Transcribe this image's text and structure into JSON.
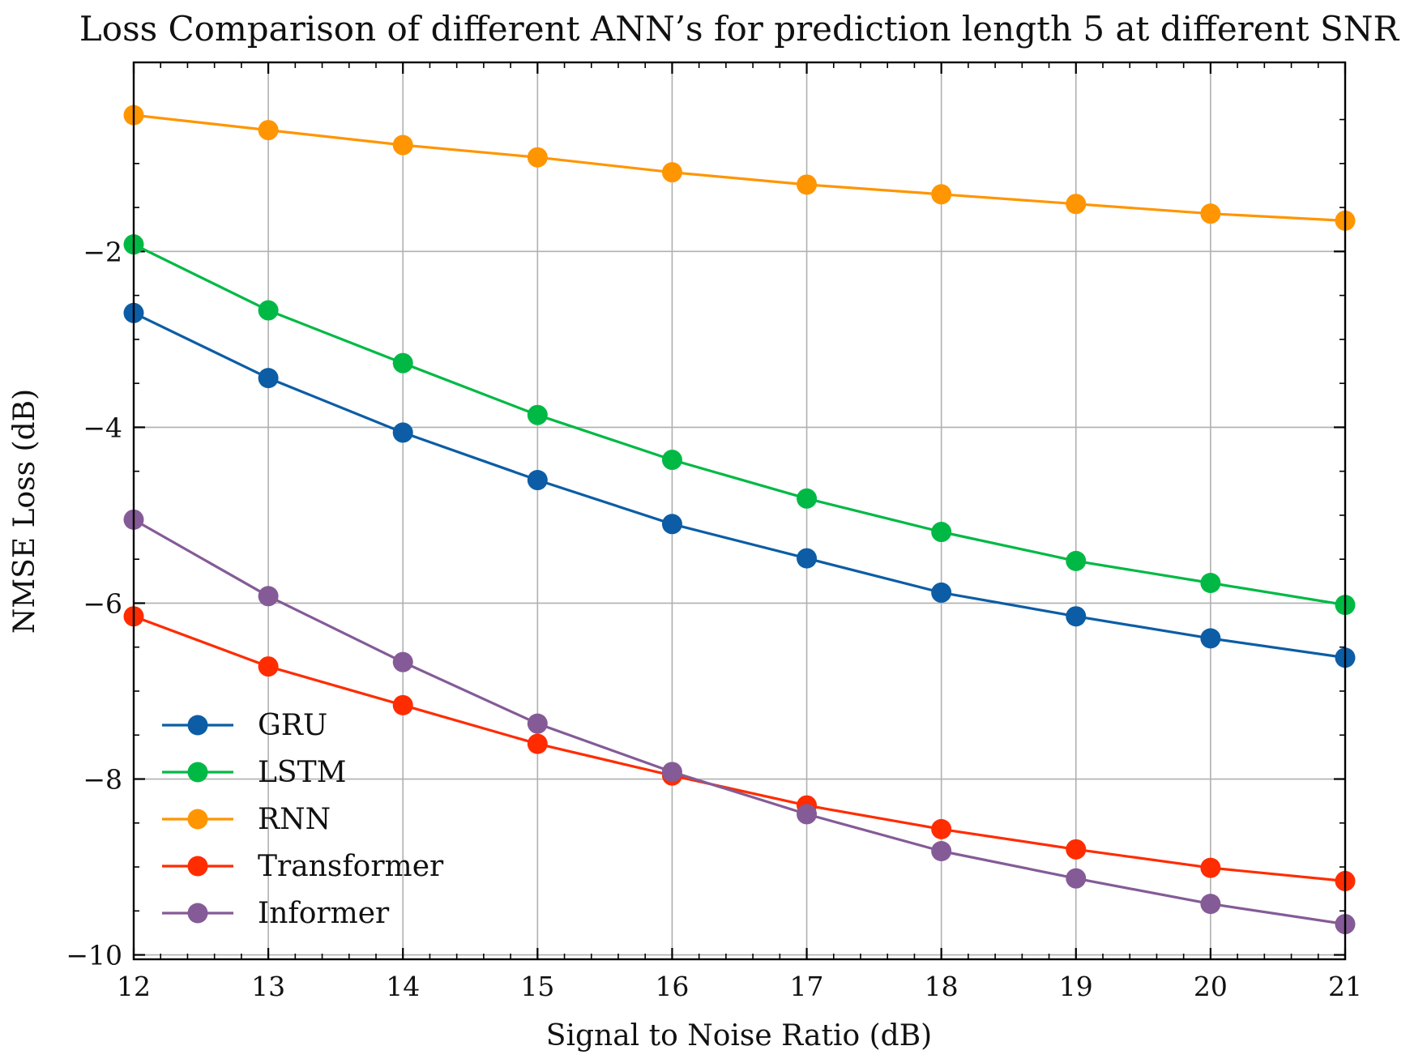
{
  "chart_data": {
    "type": "line",
    "title": "Loss Comparison of different ANN’s for prediction length 5 at different SNR",
    "xlabel": "Signal to Noise Ratio (dB)",
    "ylabel": "NMSE Loss (dB)",
    "x": [
      12,
      13,
      14,
      15,
      16,
      17,
      18,
      19,
      20,
      21
    ],
    "xlim": [
      12,
      21
    ],
    "ylim": [
      -10.05,
      0.15
    ],
    "xticks": [
      12,
      13,
      14,
      15,
      16,
      17,
      18,
      19,
      20,
      21
    ],
    "yticks": [
      -2,
      -4,
      -6,
      -8,
      -10
    ],
    "ytick_labels": [
      "−2",
      "−4",
      "−6",
      "−8",
      "−10"
    ],
    "grid": true,
    "legend_position": "lower-left",
    "series": [
      {
        "name": "GRU",
        "color": "#0C5DA5",
        "values": [
          -2.7,
          -3.44,
          -4.06,
          -4.6,
          -5.1,
          -5.49,
          -5.88,
          -6.15,
          -6.4,
          -6.62
        ]
      },
      {
        "name": "LSTM",
        "color": "#00B945",
        "values": [
          -1.92,
          -2.67,
          -3.27,
          -3.86,
          -4.37,
          -4.81,
          -5.19,
          -5.52,
          -5.77,
          -6.02
        ]
      },
      {
        "name": "RNN",
        "color": "#FF9500",
        "values": [
          -0.45,
          -0.62,
          -0.79,
          -0.93,
          -1.1,
          -1.24,
          -1.35,
          -1.46,
          -1.57,
          -1.65
        ]
      },
      {
        "name": "Transformer",
        "color": "#FF2C00",
        "values": [
          -6.15,
          -6.72,
          -7.16,
          -7.6,
          -7.96,
          -8.3,
          -8.57,
          -8.8,
          -9.01,
          -9.16
        ]
      },
      {
        "name": "Informer",
        "color": "#845B97",
        "values": [
          -5.05,
          -5.92,
          -6.67,
          -7.37,
          -7.92,
          -8.4,
          -8.82,
          -9.13,
          -9.42,
          -9.65
        ]
      }
    ]
  }
}
